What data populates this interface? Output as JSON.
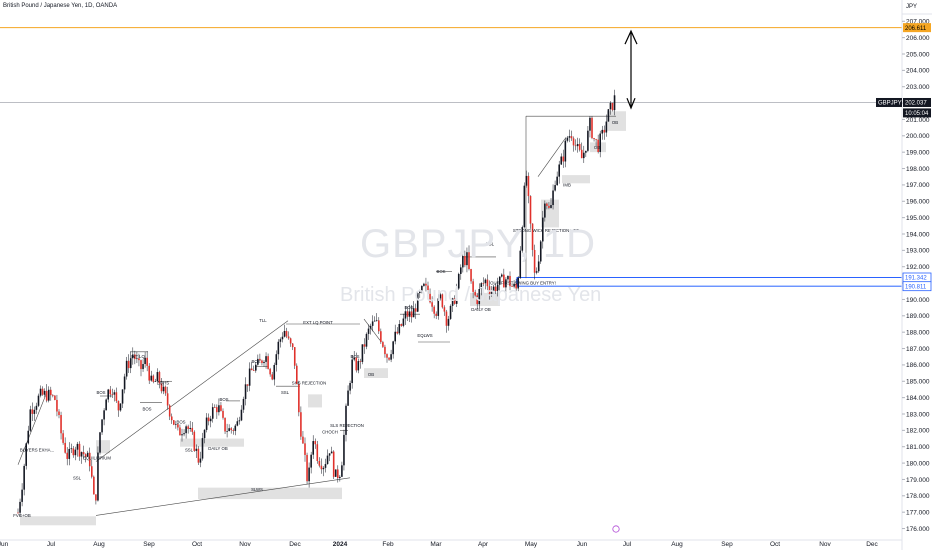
{
  "header": {
    "title": "British Pound / Japanese Yen, 1D, OANDA",
    "currency": "JPY"
  },
  "watermark": {
    "symbol": "GBPJPY, 1D",
    "name": "British Pound / Japanese Yen"
  },
  "colors": {
    "up": "#131722",
    "down": "#e0312b",
    "target_line": "#f5a623",
    "zone": "#2962ff",
    "box_fill": "#d9d9d9"
  },
  "chart_data": {
    "type": "candlestick",
    "symbol": "GBPJPY",
    "timeframe": "1D",
    "ylim": [
      175.3,
      208.3
    ],
    "xlim": [
      0,
      932
    ],
    "y_ticks": [
      "176.000",
      "177.000",
      "178.000",
      "179.000",
      "180.000",
      "181.000",
      "182.000",
      "183.000",
      "184.000",
      "185.000",
      "186.000",
      "187.000",
      "188.000",
      "189.000",
      "190.000",
      "191.000",
      "192.000",
      "193.000",
      "194.000",
      "195.000",
      "196.000",
      "197.000",
      "198.000",
      "199.000",
      "200.000",
      "201.000",
      "202.000",
      "203.000",
      "204.000",
      "205.000",
      "206.000",
      "207.000"
    ],
    "x_ticks": [
      {
        "label": "Jun",
        "x": 3
      },
      {
        "label": "Jul",
        "x": 51
      },
      {
        "label": "Aug",
        "x": 99
      },
      {
        "label": "Sep",
        "x": 149
      },
      {
        "label": "Oct",
        "x": 197
      },
      {
        "label": "Nov",
        "x": 245
      },
      {
        "label": "Dec",
        "x": 295
      },
      {
        "label": "2024",
        "x": 340,
        "bold": true
      },
      {
        "label": "Feb",
        "x": 388
      },
      {
        "label": "Mar",
        "x": 436
      },
      {
        "label": "Apr",
        "x": 483
      },
      {
        "label": "May",
        "x": 531
      },
      {
        "label": "Jun",
        "x": 582
      },
      {
        "label": "Jul",
        "x": 627
      },
      {
        "label": "Aug",
        "x": 677
      },
      {
        "label": "Sep",
        "x": 727
      },
      {
        "label": "Oct",
        "x": 775
      },
      {
        "label": "Nov",
        "x": 825
      },
      {
        "label": "Dec",
        "x": 872
      }
    ],
    "price_tags": [
      {
        "label": "206.611",
        "value": 206.611,
        "style": "target"
      },
      {
        "label": "202.037",
        "value": 202.037,
        "style": "last"
      },
      {
        "label": "10:05:04",
        "value": 201.4,
        "style": "timer"
      },
      {
        "label": "191.342",
        "value": 191.342,
        "style": "zone"
      },
      {
        "label": "190.811",
        "value": 190.811,
        "style": "zone"
      }
    ],
    "levels": {
      "target": 206.611,
      "last": 202.037,
      "zone_top": 191.342,
      "zone_bottom": 190.811
    },
    "anchors": [
      [
        3,
        170.5
      ],
      [
        22,
        178.7
      ],
      [
        30,
        183.2
      ],
      [
        40,
        184.1
      ],
      [
        47,
        184.2
      ],
      [
        55,
        183.9
      ],
      [
        62,
        181.5
      ],
      [
        68,
        180.3
      ],
      [
        75,
        181.1
      ],
      [
        82,
        180.7
      ],
      [
        90,
        180.1
      ],
      [
        95,
        177.1
      ],
      [
        99,
        181.5
      ],
      [
        106,
        184.2
      ],
      [
        112,
        184.7
      ],
      [
        118,
        183.2
      ],
      [
        126,
        185.8
      ],
      [
        133,
        186.7
      ],
      [
        140,
        185.7
      ],
      [
        146,
        186.3
      ],
      [
        152,
        184.7
      ],
      [
        158,
        185.2
      ],
      [
        166,
        183.9
      ],
      [
        172,
        182.8
      ],
      [
        178,
        181.8
      ],
      [
        186,
        182.4
      ],
      [
        193,
        181.4
      ],
      [
        199,
        180.1
      ],
      [
        205,
        182.1
      ],
      [
        211,
        183.1
      ],
      [
        218,
        183.5
      ],
      [
        224,
        182.2
      ],
      [
        230,
        182.0
      ],
      [
        237,
        182.3
      ],
      [
        243,
        184.2
      ],
      [
        248,
        185.1
      ],
      [
        253,
        185.8
      ],
      [
        259,
        186.0
      ],
      [
        265,
        186.7
      ],
      [
        272,
        185.4
      ],
      [
        278,
        187.2
      ],
      [
        284,
        188.2
      ],
      [
        289,
        187.3
      ],
      [
        294,
        186.7
      ],
      [
        299,
        183.0
      ],
      [
        303,
        181.0
      ],
      [
        308,
        178.7
      ],
      [
        313,
        181.7
      ],
      [
        318,
        180.3
      ],
      [
        324,
        179.9
      ],
      [
        330,
        181.0
      ],
      [
        335,
        179.1
      ],
      [
        341,
        179.6
      ],
      [
        347,
        183.8
      ],
      [
        352,
        186.1
      ],
      [
        358,
        185.9
      ],
      [
        364,
        187.2
      ],
      [
        370,
        188.3
      ],
      [
        376,
        188.6
      ],
      [
        382,
        187.5
      ],
      [
        388,
        186.4
      ],
      [
        394,
        187.6
      ],
      [
        400,
        188.2
      ],
      [
        406,
        189.1
      ],
      [
        412,
        189.0
      ],
      [
        418,
        190.0
      ],
      [
        424,
        190.7
      ],
      [
        430,
        190.2
      ],
      [
        436,
        189.3
      ],
      [
        441,
        190.2
      ],
      [
        447,
        188.7
      ],
      [
        452,
        189.5
      ],
      [
        458,
        190.9
      ],
      [
        462,
        192.4
      ],
      [
        467,
        192.5
      ],
      [
        472,
        190.5
      ],
      [
        477,
        190.0
      ],
      [
        481,
        190.8
      ],
      [
        486,
        191.2
      ],
      [
        491,
        190.5
      ],
      [
        497,
        190.9
      ],
      [
        502,
        191.1
      ],
      [
        507,
        191.3
      ],
      [
        512,
        190.8
      ],
      [
        517,
        190.6
      ],
      [
        522,
        194.6
      ],
      [
        526,
        197.9
      ],
      [
        530,
        194.6
      ],
      [
        535,
        191.2
      ],
      [
        540,
        193.2
      ],
      [
        545,
        196.4
      ],
      [
        550,
        195.2
      ],
      [
        555,
        197.4
      ],
      [
        559,
        198.0
      ],
      [
        563,
        198.7
      ],
      [
        567,
        199.9
      ],
      [
        572,
        200.2
      ],
      [
        576,
        199.3
      ],
      [
        582,
        198.6
      ],
      [
        586,
        199.5
      ],
      [
        590,
        200.7
      ],
      [
        594,
        199.8
      ],
      [
        598,
        199.4
      ],
      [
        603,
        200.1
      ],
      [
        607,
        201.1
      ],
      [
        611,
        201.7
      ],
      [
        615,
        202.3
      ]
    ],
    "annotations": [
      {
        "text": "FVG+OB",
        "price": 176.8,
        "x": 22
      },
      {
        "text": "BUYERS EXHA...",
        "price": 180.8,
        "x": 37
      },
      {
        "text": "SSL",
        "price": 179.1,
        "x": 77
      },
      {
        "text": "EQUILIBRIUM",
        "price": 180.3,
        "x": 97
      },
      {
        "text": "BOS",
        "price": 184.3,
        "x": 101
      },
      {
        "text": "INT LQ",
        "price": 186.5,
        "x": 138
      },
      {
        "text": "EQHS",
        "price": 184.9,
        "x": 163
      },
      {
        "text": "BOS",
        "price": 183.3,
        "x": 147
      },
      {
        "text": "SSL",
        "price": 180.8,
        "x": 189
      },
      {
        "text": "DAILY OB",
        "price": 180.9,
        "x": 218
      },
      {
        "text": "BOS",
        "price": 182.5,
        "x": 181
      },
      {
        "text": "BOS",
        "price": 183.9,
        "x": 224
      },
      {
        "text": "BOS",
        "price": 186.2,
        "x": 256
      },
      {
        "text": "TLL",
        "price": 188.7,
        "x": 263
      },
      {
        "text": "EXT LQ POINT",
        "price": 188.6,
        "x": 318
      },
      {
        "text": "SSL",
        "price": 184.3,
        "x": 285
      },
      {
        "text": "SHS REJECTION",
        "price": 184.9,
        "x": 309
      },
      {
        "text": "CHOCH",
        "price": 181.9,
        "x": 330
      },
      {
        "text": "SLS REJECTION",
        "price": 182.3,
        "x": 347
      },
      {
        "text": "SLWS",
        "price": 178.4,
        "x": 257
      },
      {
        "text": "BOS",
        "price": 186.5,
        "x": 355
      },
      {
        "text": "OB",
        "price": 185.4,
        "x": 371
      },
      {
        "text": "BOS",
        "price": 189.5,
        "x": 409
      },
      {
        "text": "EQLWS",
        "price": 187.8,
        "x": 425
      },
      {
        "text": "BOS",
        "price": 191.7,
        "x": 441
      },
      {
        "text": "BSL",
        "price": 193.4,
        "x": 490
      },
      {
        "text": "DAILY OB",
        "price": 189.4,
        "x": 481
      },
      {
        "text": "OUR FIRST SWING BUY ENTRY!",
        "price": 191.0,
        "x": 523
      },
      {
        "text": "STRONG WICK REJECTION+ OB",
        "price": 194.2,
        "x": 546
      },
      {
        "text": "IMB",
        "price": 197.0,
        "x": 567
      },
      {
        "text": "OB",
        "price": 199.3,
        "x": 597
      },
      {
        "text": "OB",
        "price": 200.8,
        "x": 615
      }
    ]
  }
}
